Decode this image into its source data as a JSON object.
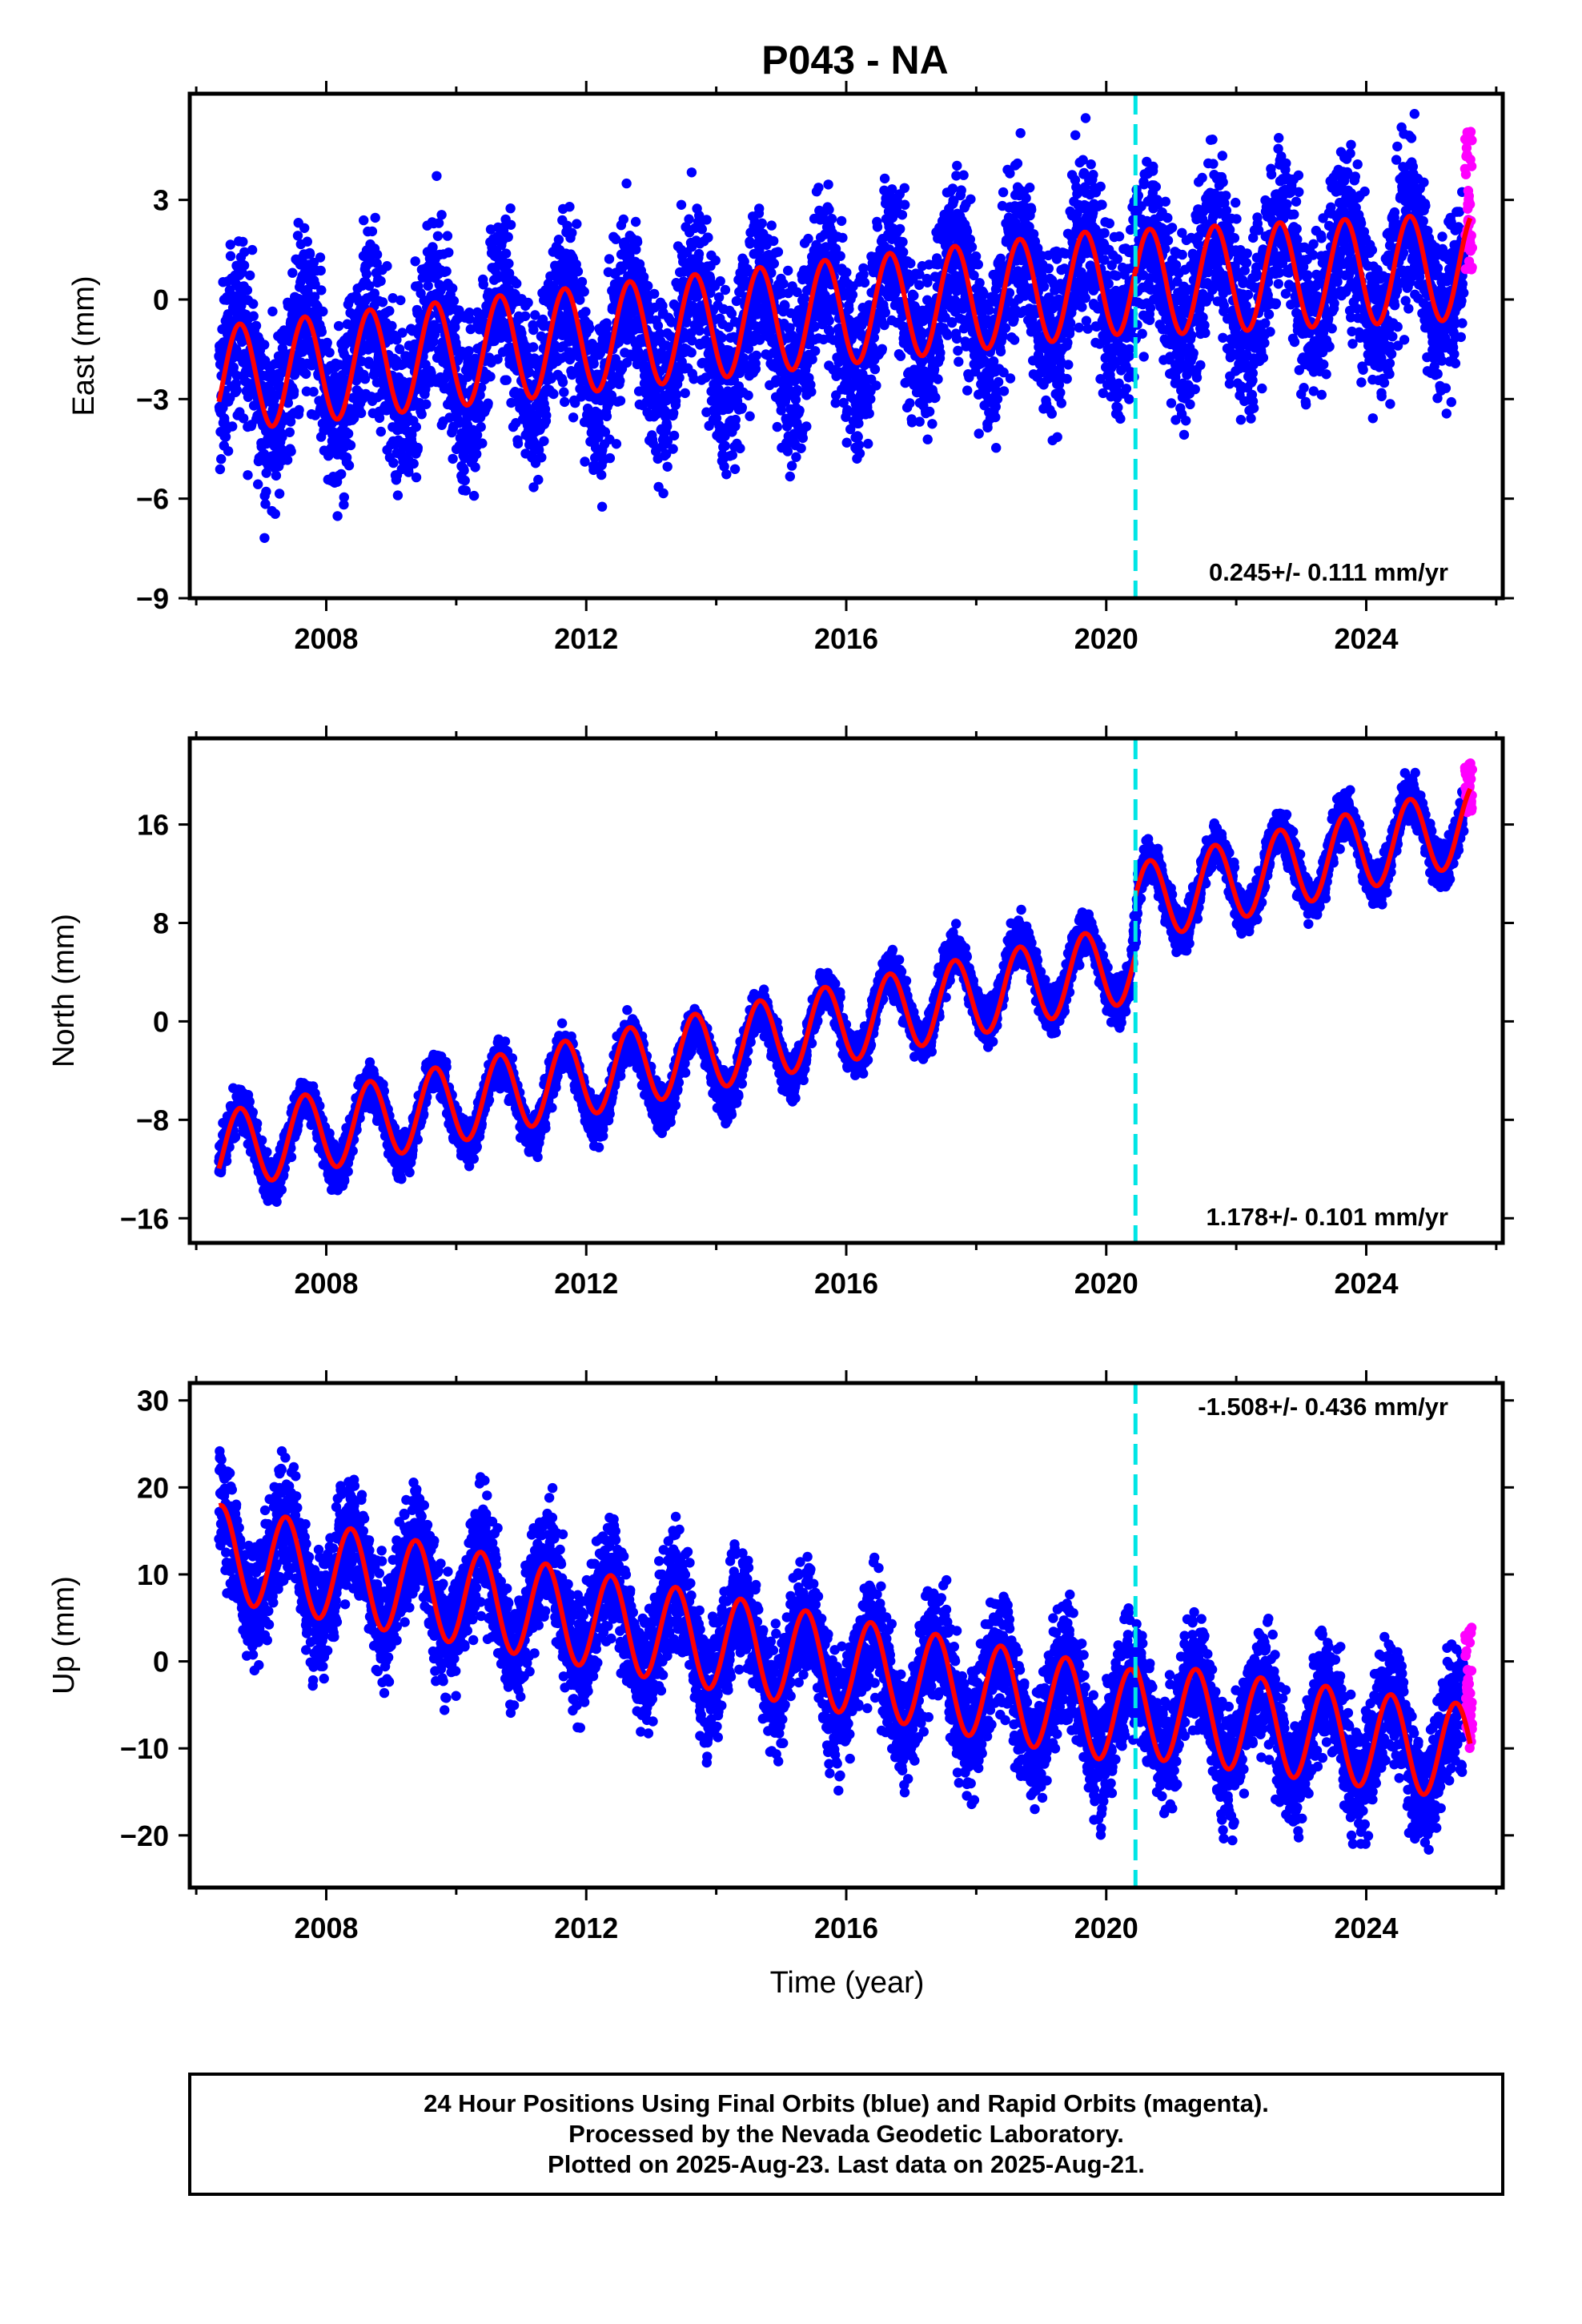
{
  "figure": {
    "title": "P043 - NA",
    "xlabel": "Time (year)",
    "footer_lines": [
      "24 Hour Positions Using Final Orbits (blue) and Rapid Orbits (magenta).",
      "Processed by the Nevada Geodetic Laboratory.",
      "Plotted on 2025-Aug-23. Last data on 2025-Aug-21."
    ]
  },
  "colors": {
    "final_orbits": "#0000ff",
    "rapid_orbits": "#ff00ff",
    "model_fit": "#ff0000",
    "equipment_change": "#00e5e5",
    "frame": "#000000"
  },
  "chart_data": [
    {
      "type": "scatter",
      "component": "east",
      "ylabel": "East (mm)",
      "xlim": [
        2005.9,
        2026.1
      ],
      "ylim": [
        -9,
        6.2
      ],
      "yticks": [
        -9,
        -6,
        -3,
        0,
        3
      ],
      "xticks": [
        2008,
        2012,
        2016,
        2020,
        2024
      ],
      "rate_label": "0.245+/- 0.111 mm/yr",
      "rate_label_position": "bottom-right",
      "velocity_mm_per_yr": 0.245,
      "marker_year": 2020.45,
      "series": [
        {
          "role": "final",
          "x_start": 2006.35,
          "x_end": 2025.5,
          "seasonal_amplitude": 1.6,
          "phase": 0.42,
          "trend": [
            [
              2006.35,
              -2.4
            ],
            [
              2010.0,
              -1.6
            ],
            [
              2014.0,
              -1.1
            ],
            [
              2018.0,
              0.0
            ],
            [
              2020.4,
              0.6
            ],
            [
              2020.5,
              0.4
            ],
            [
              2025.5,
              1.0
            ]
          ],
          "noise": 1.3,
          "range": [
            -8.7,
            5.6
          ]
        },
        {
          "role": "rapid",
          "x_start": 2025.52,
          "x_end": 2025.63,
          "center": 3.0,
          "spread": 4.2,
          "range": [
            -0.6,
            5.5
          ]
        }
      ],
      "fit": {
        "segments": [
          {
            "x_start": 2006.35,
            "x_end": 2020.45,
            "y_start": -2.4,
            "y_end": 0.6,
            "amplitude": 1.6,
            "phase": 0.42
          },
          {
            "x_start": 2020.45,
            "x_end": 2025.6,
            "y_start": 0.5,
            "y_end": 1.0,
            "amplitude": 1.6,
            "phase": 0.42
          }
        ]
      }
    },
    {
      "type": "scatter",
      "component": "north",
      "ylabel": "North (mm)",
      "xlim": [
        2005.9,
        2026.1
      ],
      "ylim": [
        -18,
        23
      ],
      "yticks": [
        -16,
        -8,
        0,
        8,
        16
      ],
      "xticks": [
        2008,
        2012,
        2016,
        2020,
        2024
      ],
      "rate_label": "1.178+/- 0.101 mm/yr",
      "rate_label_position": "bottom-right",
      "velocity_mm_per_yr": 1.178,
      "marker_year": 2020.45,
      "series": [
        {
          "role": "final",
          "x_start": 2006.35,
          "x_end": 2025.5,
          "seasonal_amplitude": 3.2,
          "phase": 0.42,
          "trend": [
            [
              2006.35,
              -10.6
            ],
            [
              2010.0,
              -7.0
            ],
            [
              2014.0,
              -3.3
            ],
            [
              2018.0,
              3.0
            ],
            [
              2020.4,
              4.8
            ],
            [
              2020.5,
              9.6
            ],
            [
              2025.5,
              16.0
            ]
          ],
          "noise": 0.9,
          "range": [
            -17.0,
            22.0
          ]
        },
        {
          "role": "rapid",
          "x_start": 2025.52,
          "x_end": 2025.63,
          "center": 19.0,
          "spread": 4.0,
          "range": [
            16.0,
            22.0
          ]
        }
      ],
      "fit": {
        "segments": [
          {
            "x_start": 2006.35,
            "x_end": 2020.45,
            "y_start": -10.6,
            "y_end": 4.8,
            "amplitude": 3.2,
            "phase": 0.42
          },
          {
            "x_start": 2020.45,
            "x_end": 2025.6,
            "y_start": 9.6,
            "y_end": 16.0,
            "amplitude": 3.2,
            "phase": 0.42
          }
        ]
      }
    },
    {
      "type": "scatter",
      "component": "up",
      "ylabel": "Up (mm)",
      "xlim": [
        2005.9,
        2026.1
      ],
      "ylim": [
        -26,
        32
      ],
      "yticks": [
        -20,
        -10,
        0,
        10,
        20,
        30
      ],
      "xticks": [
        2008,
        2012,
        2016,
        2020,
        2024
      ],
      "rate_label": "-1.508+/- 0.436 mm/yr",
      "rate_label_position": "top-right",
      "velocity_mm_per_yr": -1.508,
      "marker_year": 2020.45,
      "series": [
        {
          "role": "final",
          "x_start": 2006.35,
          "x_end": 2025.5,
          "seasonal_amplitude": 5.5,
          "phase": 0.13,
          "trend": [
            [
              2006.35,
              12.5
            ],
            [
              2009.0,
              9.0
            ],
            [
              2012.0,
              5.5
            ],
            [
              2016.0,
              -1.0
            ],
            [
              2020.4,
              -6.5
            ],
            [
              2020.5,
              -5.5
            ],
            [
              2025.5,
              -10.5
            ]
          ],
          "noise": 3.4,
          "range": [
            -25.0,
            31.0
          ]
        },
        {
          "role": "rapid",
          "x_start": 2025.52,
          "x_end": 2025.63,
          "center": -3.0,
          "spread": 14.0,
          "range": [
            -10.0,
            5.0
          ]
        }
      ],
      "fit": {
        "segments": [
          {
            "x_start": 2006.35,
            "x_end": 2020.45,
            "y_start": 12.5,
            "y_end": -6.5,
            "amplitude": 5.5,
            "phase": 0.13
          },
          {
            "x_start": 2020.45,
            "x_end": 2025.6,
            "y_start": -5.5,
            "y_end": -10.5,
            "amplitude": 5.5,
            "phase": 0.13
          }
        ]
      }
    }
  ]
}
